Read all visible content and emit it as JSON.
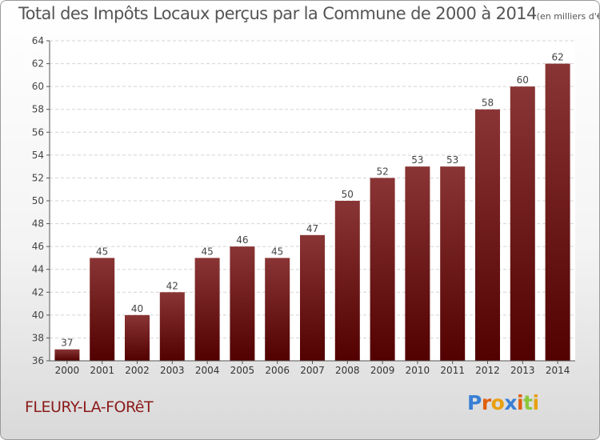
{
  "header": {
    "title": "Total des Impôts Locaux perçus par la Commune de 2000 à 2014",
    "subtitle": "(en milliers d'€)"
  },
  "commune_name": "FLEURY-LA-FORêT",
  "logo_text": "Proxiti",
  "colors": {
    "bar_top": "#8a3535",
    "bar_bottom": "#520000",
    "commune": "#8b1a1a",
    "logo_letters": [
      "#3a7fd5",
      "#e06010",
      "#e8a010",
      "#3a7fd5",
      "#e06010",
      "#8cc83c",
      "#e8a010"
    ]
  },
  "chart_data": {
    "type": "bar",
    "title": "Total des Impôts Locaux perçus par la Commune de 2000 à 2014",
    "subtitle": "(en milliers d'€)",
    "categories": [
      "2000",
      "2001",
      "2002",
      "2003",
      "2004",
      "2005",
      "2006",
      "2007",
      "2008",
      "2009",
      "2010",
      "2011",
      "2012",
      "2013",
      "2014"
    ],
    "values": [
      37,
      45,
      40,
      42,
      45,
      46,
      45,
      47,
      50,
      52,
      53,
      53,
      58,
      60,
      62
    ],
    "ylim": [
      36,
      64
    ],
    "yticks": [
      36,
      38,
      40,
      42,
      44,
      46,
      48,
      50,
      52,
      54,
      56,
      58,
      60,
      62,
      64
    ],
    "grid": true,
    "legend": "none"
  }
}
